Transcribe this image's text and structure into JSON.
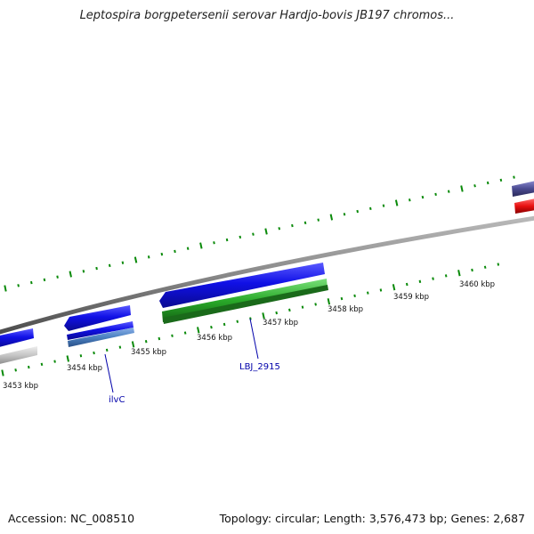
{
  "title": "Leptospira borgpetersenii serovar Hardjo-bovis JB197 chromos...",
  "ticks": [
    "3453 kbp",
    "3454 kbp",
    "3455 kbp",
    "3456 kbp",
    "3457 kbp",
    "3458 kbp",
    "3459 kbp",
    "3460 kbp"
  ],
  "gene_labels": {
    "ilvc": "ilvC",
    "lbj2915": "LBJ_2915"
  },
  "footer": {
    "accession": "Accession: NC_008510",
    "summary": "Topology: circular; Length: 3,576,473 bp; Genes: 2,687"
  },
  "colors": {
    "cds_forward": "#1010e0",
    "cds_green": "#2aa82a",
    "cds_red": "#e81010",
    "cds_grey": "#c0c0c0",
    "cds_lightblue": "#4a80c0",
    "cds_purple": "#4a4a90",
    "backbone": "#888888",
    "tick": "#0a8a0a",
    "label": "#0000aa"
  }
}
